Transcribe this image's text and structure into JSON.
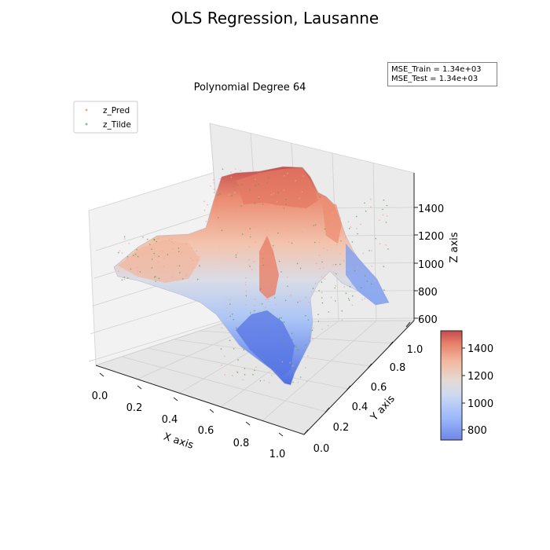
{
  "chart_data": {
    "type": "surface3d",
    "title": "OLS Regression, Lausanne",
    "subtitle": "Polynomial Degree 64",
    "xlabel": "X axis",
    "ylabel": "Y axis",
    "zlabel": "Z axis",
    "xlim": [
      0.0,
      1.0
    ],
    "ylim": [
      0.0,
      1.0
    ],
    "zlim": [
      580,
      1580
    ],
    "x_ticks": [
      "0.0",
      "0.2",
      "0.4",
      "0.6",
      "0.8",
      "1.0"
    ],
    "y_ticks": [
      "0.0",
      "0.2",
      "0.4",
      "0.6",
      "0.8",
      "1.0"
    ],
    "z_ticks": [
      "600",
      "800",
      "1000",
      "1200",
      "1400"
    ],
    "legend": {
      "placement": "top-left",
      "entries": [
        {
          "label": "z_Pred",
          "color": "#f4a3a3"
        },
        {
          "label": "z_Tilde",
          "color": "#8fbc8f"
        }
      ]
    },
    "annotation": {
      "placement": "top-right",
      "lines": [
        "MSE_Train = 1.34e+03",
        "MSE_Test = 1.34e+03"
      ]
    },
    "colorbar": {
      "colormap": "coolwarm",
      "range": [
        720,
        1530
      ],
      "ticks": [
        "800",
        "1000",
        "1200",
        "1400"
      ],
      "colors": [
        "#3b4cc0",
        "#7b9ff9",
        "#c0d4f5",
        "#dddddd",
        "#f2cbb7",
        "#ee8468",
        "#b40426"
      ]
    },
    "grid": true
  }
}
